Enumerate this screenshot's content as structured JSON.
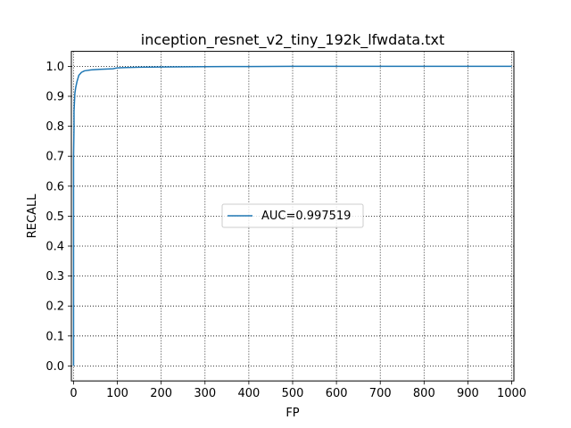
{
  "chart_data": {
    "type": "line",
    "title": "inception_resnet_v2_tiny_192k_lfwdata.txt",
    "xlabel": "FP",
    "ylabel": "RECALL",
    "xlim": [
      -5,
      1005
    ],
    "ylim": [
      -0.05,
      1.05
    ],
    "xticks": [
      0,
      100,
      200,
      300,
      400,
      500,
      600,
      700,
      800,
      900,
      1000
    ],
    "yticks": [
      0.0,
      0.1,
      0.2,
      0.3,
      0.4,
      0.5,
      0.6,
      0.7,
      0.8,
      0.9,
      1.0
    ],
    "xtick_labels": [
      "0",
      "100",
      "200",
      "300",
      "400",
      "500",
      "600",
      "700",
      "800",
      "900",
      "1000"
    ],
    "ytick_labels": [
      "0.0",
      "0.1",
      "0.2",
      "0.3",
      "0.4",
      "0.5",
      "0.6",
      "0.7",
      "0.8",
      "0.9",
      "1.0"
    ],
    "grid": true,
    "grid_style": "dotted",
    "legend_position": "center-right",
    "series": [
      {
        "name": "AUC=0.997519",
        "color": "#1f77b4",
        "x": [
          0,
          0,
          0,
          0,
          1,
          1,
          2,
          3,
          5,
          8,
          12,
          18,
          25,
          40,
          60,
          90,
          100,
          120,
          150,
          200,
          300,
          400,
          500,
          600,
          700,
          800,
          900,
          1000
        ],
        "y": [
          0.0,
          0.3,
          0.5,
          0.7,
          0.8,
          0.85,
          0.88,
          0.91,
          0.93,
          0.95,
          0.97,
          0.98,
          0.985,
          0.988,
          0.99,
          0.992,
          0.995,
          0.996,
          0.997,
          0.998,
          0.999,
          0.9995,
          1.0,
          1.0,
          1.0,
          1.0,
          1.0,
          1.0
        ]
      }
    ]
  }
}
